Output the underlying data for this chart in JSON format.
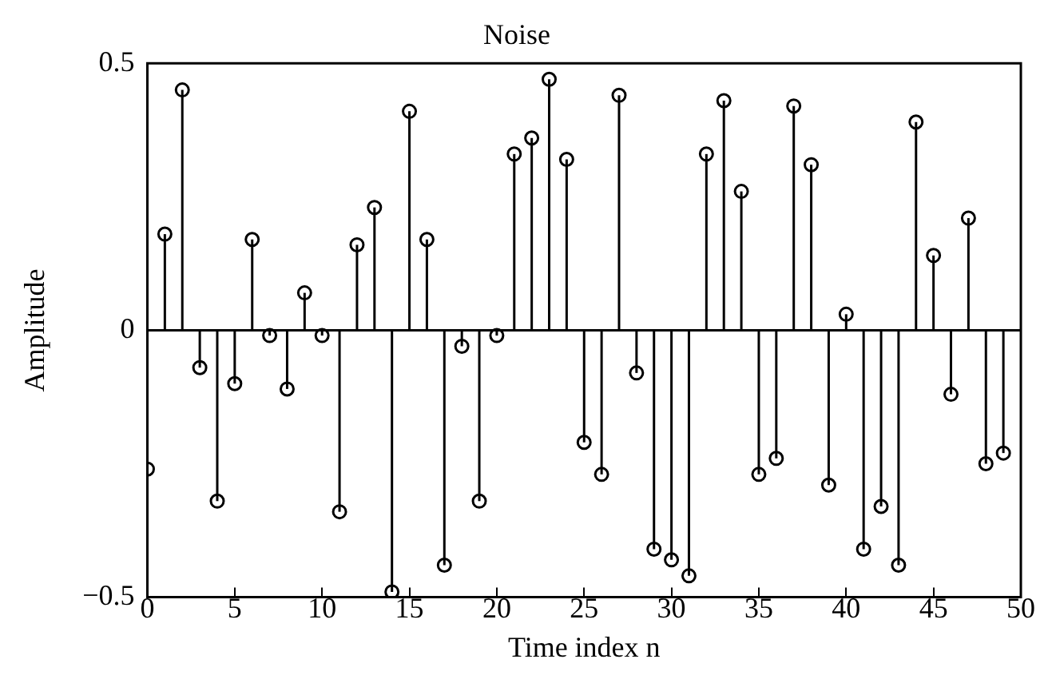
{
  "chart_data": {
    "type": "lollipop",
    "title": "Noise",
    "xlabel": "Time index n",
    "ylabel": "Amplitude",
    "x": [
      0,
      1,
      2,
      3,
      4,
      5,
      6,
      7,
      8,
      9,
      10,
      11,
      12,
      13,
      14,
      15,
      16,
      17,
      18,
      19,
      20,
      21,
      22,
      23,
      24,
      25,
      26,
      27,
      28,
      29,
      30,
      31,
      32,
      33,
      34,
      35,
      36,
      37,
      38,
      39,
      40,
      41,
      42,
      43,
      44,
      45,
      46,
      47,
      48,
      49
    ],
    "values": [
      -0.26,
      0.18,
      0.45,
      -0.07,
      -0.32,
      -0.1,
      0.17,
      -0.01,
      -0.11,
      0.07,
      -0.01,
      -0.34,
      0.16,
      0.23,
      -0.49,
      0.41,
      0.17,
      -0.44,
      -0.03,
      -0.32,
      -0.01,
      0.33,
      0.36,
      0.47,
      0.32,
      -0.21,
      -0.27,
      0.44,
      -0.08,
      -0.41,
      -0.43,
      -0.46,
      0.33,
      0.43,
      0.26,
      -0.27,
      -0.24,
      0.42,
      0.31,
      -0.29,
      0.03,
      -0.41,
      -0.33,
      -0.44,
      0.39,
      0.14,
      -0.12,
      0.21,
      -0.25,
      -0.23
    ],
    "color": "#000000",
    "marker": "circle",
    "grid": false,
    "legend": false,
    "xlim": [
      0,
      50
    ],
    "xticks": [
      0,
      5,
      10,
      15,
      20,
      25,
      30,
      35,
      40,
      45,
      50
    ],
    "ylim": [
      -0.5,
      0.5
    ],
    "yticks": [
      -0.5,
      0,
      0.5
    ],
    "ref_lines": [
      {
        "axis": "y",
        "value": 0
      }
    ]
  }
}
